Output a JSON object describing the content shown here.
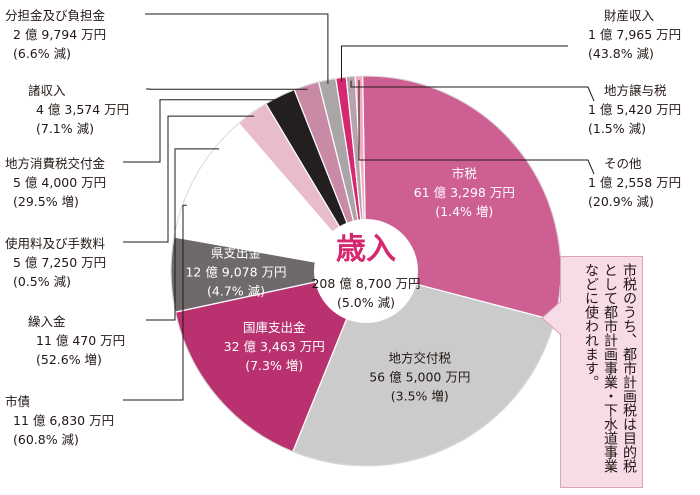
{
  "chart_data": {
    "type": "pie",
    "title": "歳入",
    "total_text": "208 億 8,700 万円",
    "total_change": "(5.0% 減)",
    "colors": {
      "shi_zei": "#cd5f92",
      "chiho_kofu": "#cbcbcb",
      "kokko": "#b9326f",
      "kenshishutsu": "#6e6a6b",
      "shisai": "#ffffff",
      "kuriire": "#ffffff",
      "shiyoryo": "#e8bcc9",
      "chiho_shohi": "#231f20",
      "shoshunyu": "#c98aa6",
      "buntan": "#aaa6a8",
      "zaisan": "#d6286e",
      "joyo": "#b6a3ac",
      "sonota": "#f4a9c3"
    },
    "slices": [
      {
        "key": "shi_zei",
        "name": "市税",
        "amount": "61 億 3,298 万円",
        "change": "(1.4% 増)",
        "value": 61.33
      },
      {
        "key": "chiho_kofu",
        "name": "地方交付税",
        "amount": "56 億 5,000 万円",
        "change": "(3.5% 増)",
        "value": 56.5
      },
      {
        "key": "kokko",
        "name": "国庫支出金",
        "amount": "32 億 3,463 万円",
        "change": "(7.3% 増)",
        "value": 32.35
      },
      {
        "key": "kenshishutsu",
        "name": "県支出金",
        "amount": "12 億 9,078 万円",
        "change": "(4.7% 減)",
        "value": 12.91
      },
      {
        "key": "shisai",
        "name": "市債",
        "amount": "11 億 6,830 万円",
        "change": "(60.8% 減)",
        "value": 11.68
      },
      {
        "key": "kuriire",
        "name": "繰入金",
        "amount": "11 億 470 万円",
        "change": "(52.6% 増)",
        "value": 11.05
      },
      {
        "key": "shiyoryo",
        "name": "使用料及び手数料",
        "amount": "5 億 7,250 万円",
        "change": "(0.5% 減)",
        "value": 5.73
      },
      {
        "key": "chiho_shohi",
        "name": "地方消費税交付金",
        "amount": "5 億 4,000 万円",
        "change": "(29.5% 増)",
        "value": 5.4
      },
      {
        "key": "shoshunyu",
        "name": "諸収入",
        "amount": "4 億 3,574 万円",
        "change": "(7.1% 減)",
        "value": 4.36
      },
      {
        "key": "buntan",
        "name": "分担金及び負担金",
        "amount": "2 億 9,794 万円",
        "change": "(6.6% 減)",
        "value": 2.98
      },
      {
        "key": "zaisan",
        "name": "財産収入",
        "amount": "1 億 7,965 万円",
        "change": "(43.8% 減)",
        "value": 1.8
      },
      {
        "key": "joyo",
        "name": "地方譲与税",
        "amount": "1 億 5,420 万円",
        "change": "(1.5% 減)",
        "value": 1.54
      },
      {
        "key": "sonota",
        "name": "その他",
        "amount": "1 億 2,558 万円",
        "change": "(20.9% 減)",
        "value": 1.26
      }
    ],
    "note": "市税のうち、都市計画税は目的税として都市計画事業・下水道事業などに使われます。",
    "legend": "none",
    "grid": false
  }
}
